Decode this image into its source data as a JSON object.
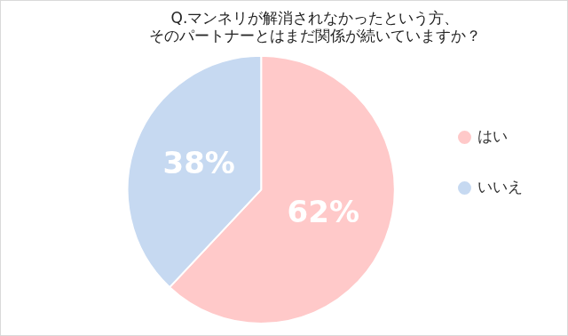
{
  "chart_data": {
    "type": "pie",
    "title": [
      "Q.マンネリが解消されなかったという方、",
      "そのパートナーとはまだ関係が続いていますか？"
    ],
    "categories": [
      "はい",
      "いいえ"
    ],
    "values": [
      62,
      38
    ],
    "value_labels": [
      "62%",
      "38%"
    ],
    "colors": [
      "#ffc9c9",
      "#c6d9f1"
    ],
    "data_labels": true,
    "legend": "right"
  }
}
